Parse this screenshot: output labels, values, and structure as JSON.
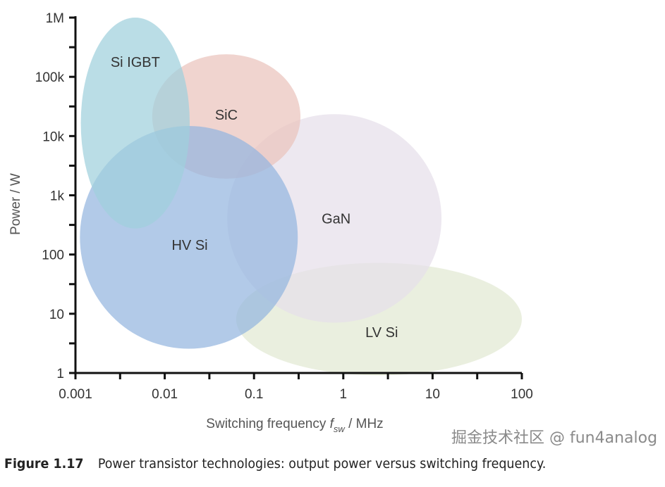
{
  "chart_data": {
    "type": "area",
    "subtype": "region-ellipses (log-log)",
    "xlabel_main": "Switching frequency ",
    "xlabel_symbol": "f",
    "xlabel_sub": "sw",
    "xlabel_unit": " / MHz",
    "ylabel": "Power / W",
    "xscale": "log",
    "yscale": "log",
    "xlim": [
      0.001,
      100
    ],
    "ylim": [
      1,
      1000000
    ],
    "x_ticks": [
      0.001,
      0.01,
      0.1,
      1,
      10,
      100
    ],
    "x_tick_labels": [
      "0.001",
      "0.01",
      "0.1",
      "1",
      "10",
      "100"
    ],
    "y_ticks": [
      1,
      10,
      100,
      1000,
      10000,
      100000,
      1000000
    ],
    "y_tick_labels": [
      "1",
      "10",
      "100",
      "1k",
      "10k",
      "100k",
      "1M"
    ],
    "grid": false,
    "series": [
      {
        "name": "LV Si",
        "center_log_f": 0.4,
        "center_log_p": 0.91,
        "half_width_decades": 1.6,
        "half_height_decades": 0.95,
        "label_log_f": 0.43,
        "label_log_p": 0.69,
        "color": "#e2e9d2"
      },
      {
        "name": "GaN",
        "center_log_f": -0.1,
        "center_log_p": 2.61,
        "half_width_decades": 1.2,
        "half_height_decades": 1.76,
        "label_log_f": -0.08,
        "label_log_p": 2.61,
        "color": "#e6dfea"
      },
      {
        "name": "SiC",
        "center_log_f": -1.31,
        "center_log_p": 4.33,
        "half_width_decades": 0.83,
        "half_height_decades": 1.05,
        "label_log_f": -1.31,
        "label_log_p": 4.36,
        "color": "#eac3bc"
      },
      {
        "name": "HV Si",
        "center_log_f": -1.73,
        "center_log_p": 2.29,
        "half_width_decades": 1.22,
        "half_height_decades": 1.88,
        "label_log_f": -1.72,
        "label_log_p": 2.16,
        "color": "#94b6df"
      },
      {
        "name": "Si IGBT",
        "center_log_f": -2.33,
        "center_log_p": 4.22,
        "half_width_decades": 0.61,
        "half_height_decades": 1.78,
        "label_log_f": -2.33,
        "label_log_p": 5.25,
        "color": "#9fd0dc"
      }
    ]
  },
  "caption": {
    "figure_label": "Figure 1.17",
    "text": "Power transistor technologies: output power versus switching frequency."
  },
  "watermark": "掘金技术社区 @ fun4analog"
}
